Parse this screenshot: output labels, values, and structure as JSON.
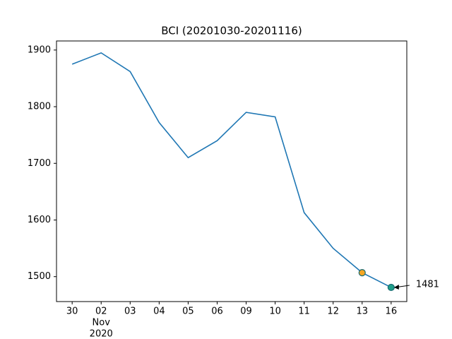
{
  "chart_data": {
    "type": "line",
    "title": "BCI (20201030-20201116)",
    "categories": [
      "30",
      "02",
      "03",
      "04",
      "05",
      "06",
      "09",
      "10",
      "11",
      "12",
      "13",
      "16"
    ],
    "x_sublabels": [
      null,
      [
        "Nov",
        "2020"
      ],
      null,
      null,
      null,
      null,
      null,
      null,
      null,
      null,
      null,
      null
    ],
    "series": [
      {
        "color": "#1f77b4",
        "values": [
          1875,
          1895,
          1862,
          1772,
          1710,
          1740,
          1790,
          1782,
          1613,
          1550,
          1507,
          1481
        ]
      }
    ],
    "marker_colors": [
      null,
      null,
      null,
      null,
      null,
      null,
      null,
      null,
      null,
      null,
      "#f5a623",
      "#1f9e89"
    ],
    "ylim": [
      1456,
      1916
    ],
    "yticks": [
      1500,
      1600,
      1700,
      1800,
      1900
    ]
  }
}
